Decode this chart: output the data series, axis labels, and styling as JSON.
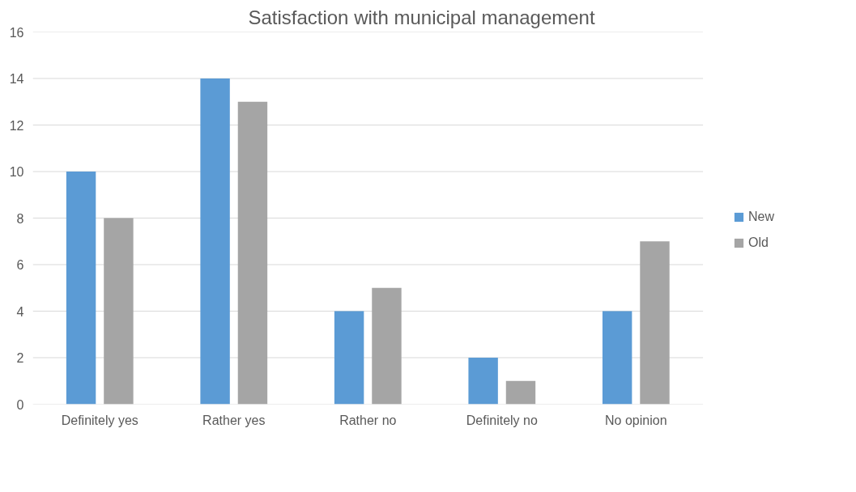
{
  "chart_data": {
    "type": "bar",
    "title": "Satisfaction with municipal management",
    "categories": [
      "Definitely yes",
      "Rather yes",
      "Rather no",
      "Definitely no",
      "No opinion"
    ],
    "series": [
      {
        "name": "New",
        "color": "#5b9bd5",
        "values": [
          10,
          14,
          4,
          2,
          4
        ]
      },
      {
        "name": "Old",
        "color": "#a5a5a5",
        "values": [
          8,
          13,
          5,
          1,
          7
        ]
      }
    ],
    "ylim": [
      0,
      16
    ],
    "yticks": [
      0,
      2,
      4,
      6,
      8,
      10,
      12,
      14,
      16
    ],
    "grid": "y",
    "legend": "right"
  }
}
